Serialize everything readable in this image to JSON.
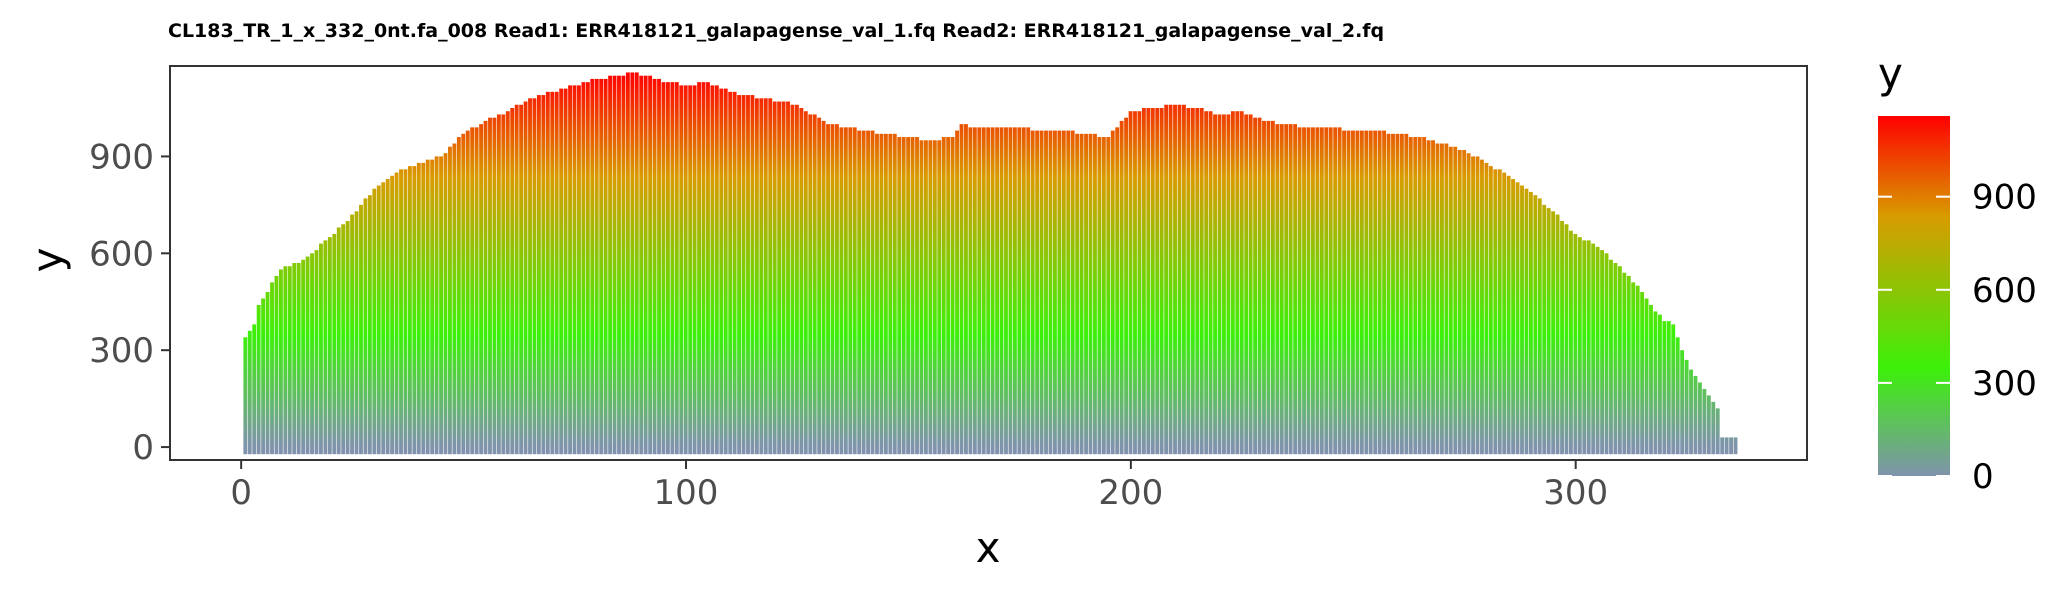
{
  "chart_data": {
    "type": "bar",
    "title": "CL183_TR_1_x_332_0nt.fa_008 Read1: ERR418121_galapagense_val_1.fq Read2: ERR418121_galapagense_val_2.fq",
    "xlabel": "x",
    "ylabel": "y",
    "xlim": [
      -16,
      352
    ],
    "ylim": [
      -40,
      1180
    ],
    "x_ticks": [
      0,
      100,
      200,
      300
    ],
    "y_ticks": [
      0,
      300,
      600,
      900
    ],
    "grid": false,
    "legend": {
      "title": "y",
      "position": "right",
      "ticks": [
        0,
        300,
        600,
        900
      ],
      "range": [
        0,
        1160
      ],
      "colors": [
        "#7f93ad",
        "#3cf00a",
        "#d89c00",
        "#ff0000"
      ],
      "color_stops": [
        0,
        0.3,
        0.72,
        1
      ]
    },
    "series_knots": {
      "x": [
        1,
        2,
        3,
        4,
        6,
        8,
        10,
        13,
        16,
        20,
        24,
        27,
        30,
        35,
        40,
        45,
        50,
        55,
        60,
        65,
        70,
        75,
        80,
        85,
        88,
        92,
        96,
        100,
        105,
        108,
        112,
        118,
        125,
        132,
        140,
        145,
        150,
        155,
        160,
        162,
        165,
        170,
        175,
        180,
        185,
        190,
        195,
        200,
        205,
        210,
        215,
        220,
        225,
        230,
        235,
        240,
        245,
        250,
        255,
        260,
        265,
        270,
        275,
        280,
        285,
        290,
        295,
        300,
        305,
        310,
        315,
        318,
        320,
        322,
        324,
        326,
        328,
        330,
        332,
        333,
        334,
        335,
        336
      ],
      "y": [
        340,
        360,
        380,
        440,
        480,
        530,
        560,
        570,
        600,
        650,
        700,
        750,
        800,
        850,
        880,
        900,
        970,
        1010,
        1040,
        1080,
        1100,
        1120,
        1140,
        1150,
        1160,
        1145,
        1130,
        1120,
        1130,
        1110,
        1090,
        1080,
        1060,
        1000,
        980,
        970,
        960,
        950,
        960,
        1000,
        990,
        990,
        990,
        980,
        980,
        970,
        960,
        1040,
        1050,
        1060,
        1050,
        1030,
        1040,
        1010,
        1000,
        990,
        990,
        980,
        980,
        970,
        960,
        940,
        920,
        880,
        840,
        790,
        730,
        660,
        620,
        560,
        480,
        420,
        390,
        380,
        300,
        240,
        200,
        160,
        120,
        30,
        30,
        30,
        30
      ]
    }
  }
}
